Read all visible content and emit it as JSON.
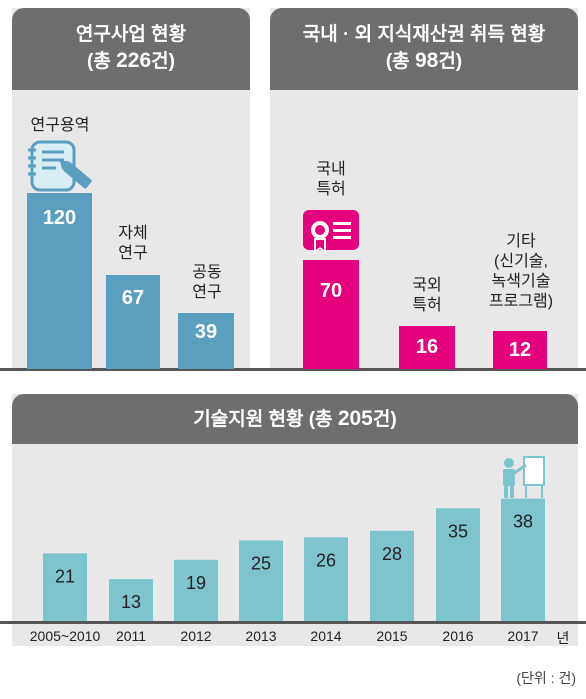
{
  "colors": {
    "research": "#5a9fc0",
    "ip": "#e5007e",
    "support": "#7dc4cc",
    "header": "#6d6e70",
    "panel": "#e8e8e8"
  },
  "research": {
    "title": "연구사업 현황",
    "total_prefix": "(총 ",
    "total": "226",
    "total_suffix": "건)",
    "icon": "document-pencil-icon",
    "items": [
      {
        "label_lines": [
          "연구용역"
        ],
        "value": 120
      },
      {
        "label_lines": [
          "자체",
          "연구"
        ],
        "value": 67
      },
      {
        "label_lines": [
          "공동",
          "연구"
        ],
        "value": 39
      }
    ]
  },
  "ip": {
    "title": "국내 · 외 지식재산권 취득 현황",
    "total_prefix": "(총 ",
    "total": "98",
    "total_suffix": "건)",
    "icon": "certificate-icon",
    "items": [
      {
        "label_lines": [
          "국내",
          "특허"
        ],
        "value": 70
      },
      {
        "label_lines": [
          "국외",
          "특허"
        ],
        "value": 16
      },
      {
        "label_lines": [
          "기타",
          "(신기술,",
          "녹색기술",
          "프로그램)"
        ],
        "value": 12
      }
    ]
  },
  "support": {
    "title_prefix": "기술지원 현황 (총 ",
    "total": "205",
    "title_suffix": "건)",
    "icon": "presenter-board-icon",
    "year_unit": "년"
  },
  "unit_note": "(단위 : 건)",
  "chart_data": {
    "type": "bar",
    "categories": [
      "2005~2010",
      "2011",
      "2012",
      "2013",
      "2014",
      "2015",
      "2016",
      "2017"
    ],
    "values": [
      21,
      13,
      19,
      25,
      26,
      28,
      35,
      38
    ],
    "title": "기술지원 현황 (총 205건)",
    "xlabel": "",
    "ylabel": "",
    "unit": "건"
  }
}
